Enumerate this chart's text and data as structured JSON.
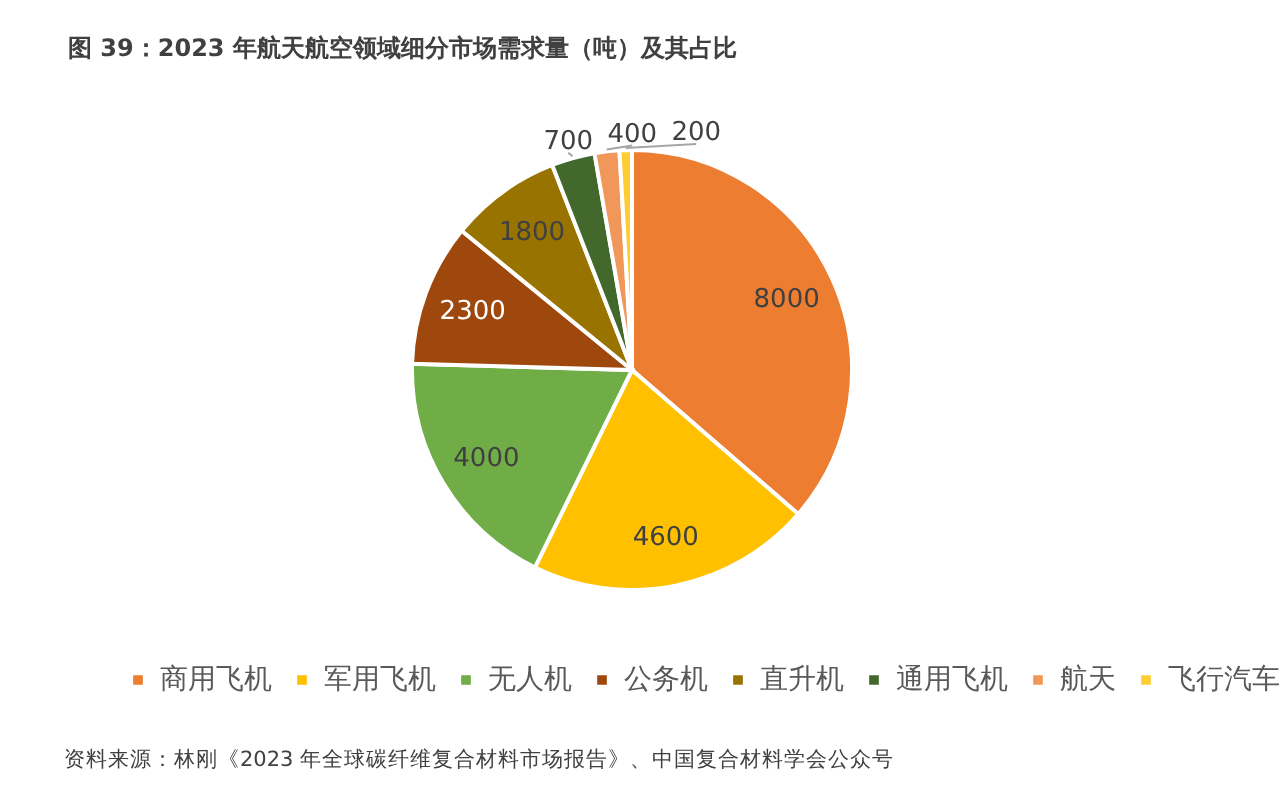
{
  "chart_data": {
    "type": "pie",
    "title": "图 39：2023 年航天航空领域细分市场需求量（吨）及其占比",
    "categories": [
      "商用飞机",
      "军用飞机",
      "无人机",
      "公务机",
      "直升机",
      "通用飞机",
      "航天",
      "飞行汽车"
    ],
    "values": [
      8000,
      4600,
      4000,
      2300,
      1800,
      700,
      400,
      200
    ],
    "colors": [
      "#ed7d31",
      "#ffc000",
      "#70ad47",
      "#9e480e",
      "#997300",
      "#43682b",
      "#f1975a",
      "#ffcd33"
    ],
    "data_labels": true,
    "legend": "bottom",
    "annotations": [
      "资料来源：林刚《2023 年全球碳纤维复合材料市场报告》、中国复合材料学会公众号"
    ]
  }
}
